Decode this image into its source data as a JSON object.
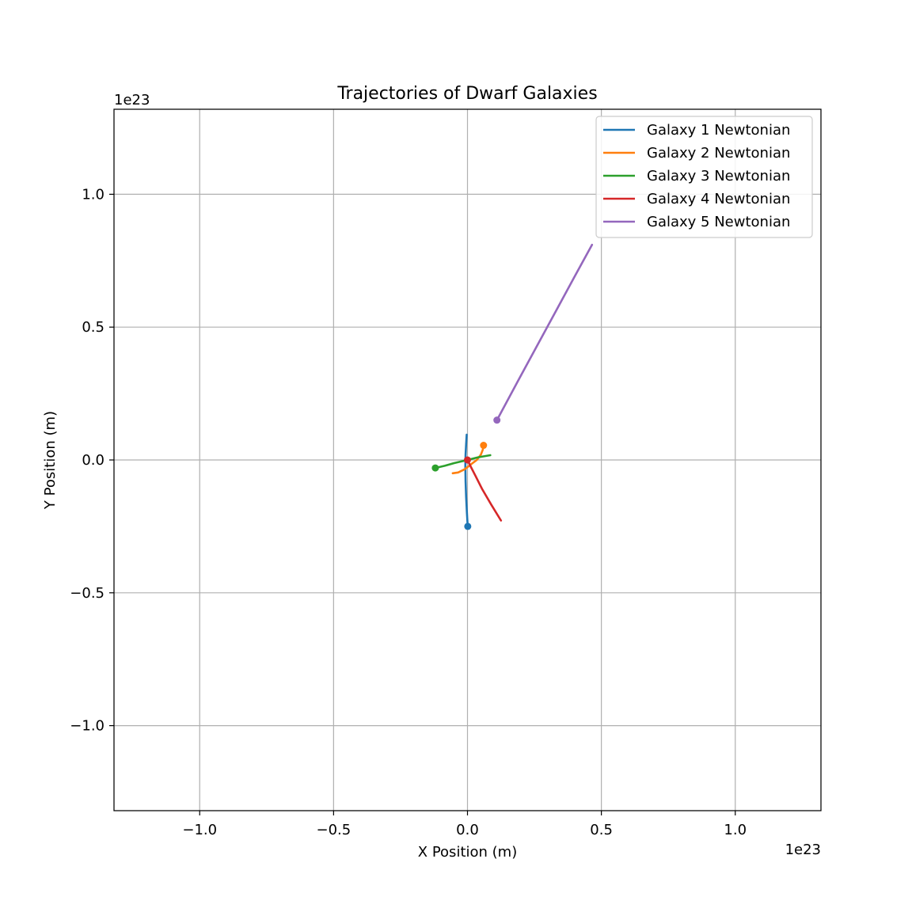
{
  "chart_data": {
    "type": "line",
    "title": "Trajectories of Dwarf Galaxies",
    "xlabel": "X Position (m)",
    "ylabel": "Y Position (m)",
    "x_offset_label": "1e23",
    "y_offset_label": "1e23",
    "xlim": [
      -1.32,
      1.32
    ],
    "ylim": [
      -1.32,
      1.32
    ],
    "x_ticks": [
      -1.0,
      -0.5,
      0.0,
      0.5,
      1.0
    ],
    "y_ticks": [
      -1.0,
      -0.5,
      0.0,
      0.5,
      1.0
    ],
    "x_tick_labels": [
      "−1.0",
      "−0.5",
      "0.0",
      "0.5",
      "1.0"
    ],
    "y_tick_labels": [
      "−1.0",
      "−0.5",
      "0.0",
      "0.5",
      "1.0"
    ],
    "grid": true,
    "legend_position": "top-right",
    "series": [
      {
        "name": "Galaxy 1 Newtonian",
        "color": "#1f77b4",
        "x": [
          -0.003,
          -0.005,
          -0.007,
          -0.008,
          -0.007,
          -0.005,
          -0.002,
          0.001
        ],
        "y": [
          0.095,
          0.06,
          0.02,
          -0.02,
          -0.08,
          -0.14,
          -0.2,
          -0.25
        ],
        "marker_end": [
          0.001,
          -0.25
        ]
      },
      {
        "name": "Galaxy 2 Newtonian",
        "color": "#ff7f0e",
        "x": [
          -0.055,
          -0.035,
          -0.01,
          0.015,
          0.035,
          0.05,
          0.057,
          0.06
        ],
        "y": [
          -0.05,
          -0.047,
          -0.035,
          -0.015,
          0.0,
          0.02,
          0.038,
          0.055
        ],
        "marker_end": [
          0.06,
          0.055
        ]
      },
      {
        "name": "Galaxy 3 Newtonian",
        "color": "#2ca02c",
        "x": [
          0.085,
          0.04,
          0.0,
          -0.05,
          -0.085,
          -0.12
        ],
        "y": [
          0.018,
          0.01,
          0.0,
          -0.012,
          -0.022,
          -0.03
        ],
        "marker_end": [
          -0.12,
          -0.03
        ]
      },
      {
        "name": "Galaxy 4 Newtonian",
        "color": "#d62728",
        "x": [
          0.125,
          0.09,
          0.055,
          0.03,
          0.012,
          0.0
        ],
        "y": [
          -0.228,
          -0.17,
          -0.11,
          -0.06,
          -0.025,
          0.0
        ],
        "marker_end": [
          0.0,
          0.0
        ]
      },
      {
        "name": "Galaxy 5 Newtonian",
        "color": "#9467bd",
        "x": [
          0.465,
          0.4,
          0.33,
          0.26,
          0.19,
          0.11
        ],
        "y": [
          0.81,
          0.69,
          0.56,
          0.43,
          0.3,
          0.15
        ],
        "marker_end": [
          0.11,
          0.15
        ]
      }
    ]
  }
}
